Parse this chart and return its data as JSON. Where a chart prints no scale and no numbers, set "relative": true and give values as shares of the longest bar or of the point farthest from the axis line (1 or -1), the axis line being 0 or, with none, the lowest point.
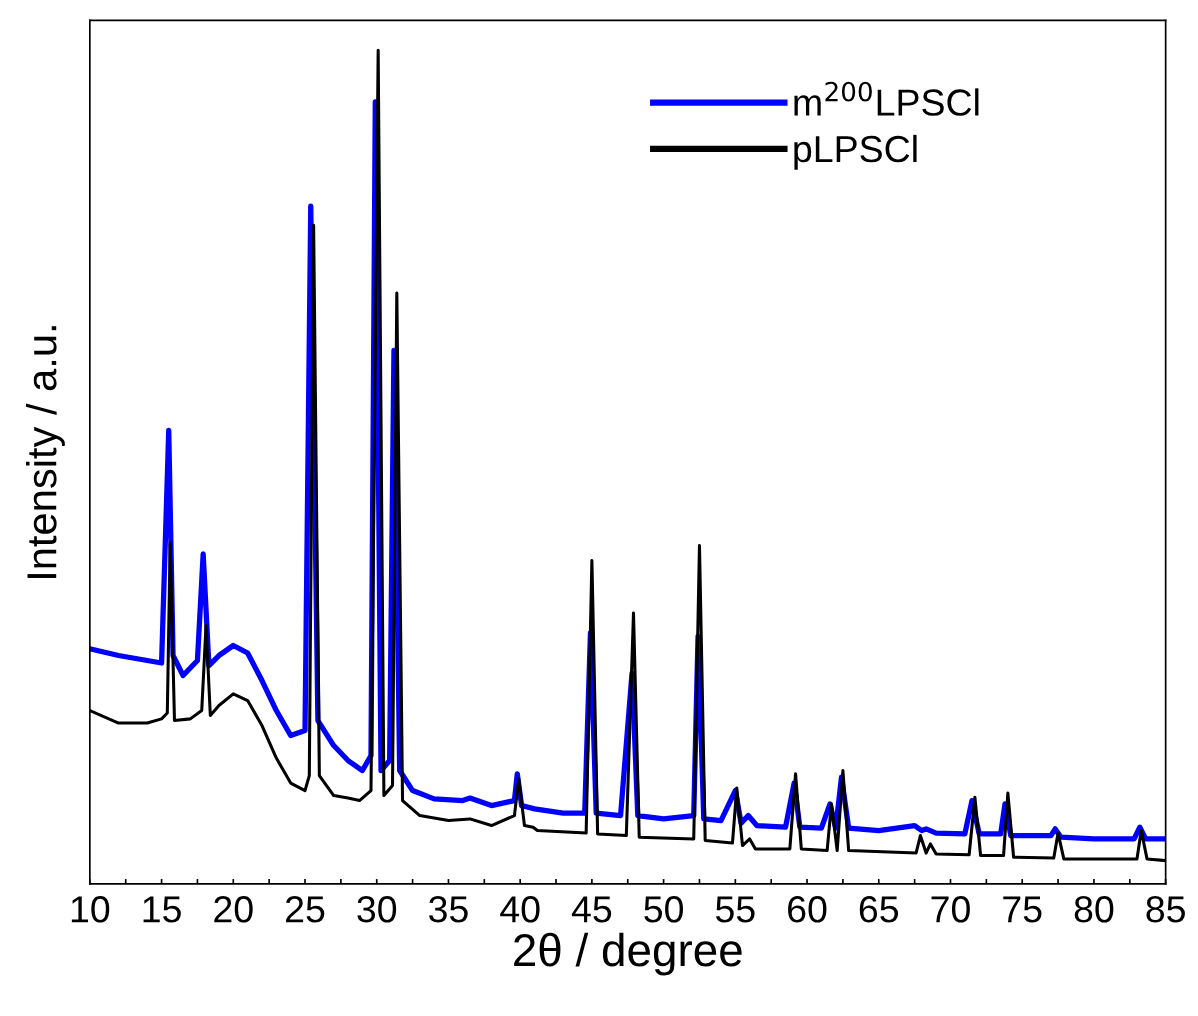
{
  "chart_data": {
    "type": "line",
    "xlabel": "2θ / degree",
    "ylabel": "Intensity / a.u.",
    "relative": true,
    "legend": "top right",
    "tick_labels": "x",
    "grid": false,
    "marker": "none",
    "line_style": "solid",
    "xlim": [
      10,
      85
    ],
    "xticks": [
      10,
      {
        "value": 12.5,
        "label": null
      },
      15,
      {
        "value": 17.5,
        "label": null
      },
      20,
      {
        "value": 22.5,
        "label": null
      },
      25,
      {
        "value": 27.5,
        "label": null
      },
      30,
      {
        "value": 32.5,
        "label": null
      },
      35,
      {
        "value": 37.5,
        "label": null
      },
      40,
      {
        "value": 42.5,
        "label": null
      },
      45,
      {
        "value": 47.5,
        "label": null
      },
      50,
      {
        "value": 52.5,
        "label": null
      },
      55,
      {
        "value": 57.5,
        "label": null
      },
      60,
      {
        "value": 62.5,
        "label": null
      },
      65,
      {
        "value": 67.5,
        "label": null
      },
      70,
      {
        "value": 72.5,
        "label": null
      },
      75,
      {
        "value": 77.5,
        "label": null
      },
      80,
      {
        "value": 82.5,
        "label": null
      },
      85
    ],
    "series": [
      {
        "name": "m$^{200}$LPSCl",
        "color": "#0000ff",
        "x": [
          10,
          12,
          14,
          15,
          15.5,
          15.8,
          16.5,
          17.5,
          17.9,
          18.3,
          19,
          20,
          21,
          22,
          23,
          24,
          25,
          25.4,
          25.9,
          27,
          28,
          29,
          29.6,
          29.9,
          30.3,
          30.9,
          31.2,
          31.6,
          32.5,
          34,
          36,
          36.5,
          38,
          39.6,
          39.8,
          40.1,
          41,
          43,
          44.5,
          44.9,
          45.3,
          47,
          47.8,
          48.2,
          50,
          52.1,
          52.4,
          52.8,
          54,
          55,
          55.4,
          55.9,
          56.5,
          58.5,
          59.1,
          59.5,
          61,
          61.6,
          62,
          62.4,
          62.9,
          65,
          67.5,
          68,
          68.3,
          69,
          71,
          71.5,
          72,
          73.5,
          73.8,
          74.2,
          77,
          77.3,
          77.7,
          80,
          82.8,
          83.2,
          83.6,
          85
        ],
        "values": [
          0.282,
          0.274,
          0.268,
          0.265,
          0.544,
          0.274,
          0.25,
          0.268,
          0.396,
          0.262,
          0.274,
          0.286,
          0.277,
          0.244,
          0.208,
          0.178,
          0.184,
          0.813,
          0.196,
          0.166,
          0.148,
          0.136,
          0.154,
          0.938,
          0.136,
          0.148,
          0.64,
          0.136,
          0.112,
          0.102,
          0.1,
          0.103,
          0.094,
          0.1,
          0.132,
          0.094,
          0.09,
          0.085,
          0.085,
          0.301,
          0.085,
          0.082,
          0.253,
          0.082,
          0.078,
          0.082,
          0.297,
          0.078,
          0.076,
          0.112,
          0.073,
          0.082,
          0.07,
          0.068,
          0.121,
          0.068,
          0.067,
          0.096,
          0.067,
          0.128,
          0.067,
          0.064,
          0.07,
          0.064,
          0.066,
          0.061,
          0.06,
          0.1,
          0.06,
          0.06,
          0.096,
          0.058,
          0.058,
          0.066,
          0.056,
          0.054,
          0.054,
          0.068,
          0.054,
          0.054
        ]
      },
      {
        "name": "pLPSCl",
        "color": "#000000",
        "x": [
          10,
          12,
          14,
          15,
          15.4,
          15.6,
          15.9,
          17,
          17.8,
          18.1,
          18.4,
          19,
          20,
          21,
          22,
          23,
          24,
          25,
          25.3,
          25.6,
          26,
          27,
          28,
          28.8,
          29.6,
          30.1,
          30.5,
          31.1,
          31.4,
          31.8,
          33,
          35,
          36.5,
          38,
          39.6,
          39.9,
          40.3,
          40.9,
          41.2,
          44.6,
          45.0,
          45.4,
          47.4,
          47.9,
          48.3,
          52.1,
          52.5,
          52.9,
          54.8,
          55.1,
          55.5,
          56,
          56.4,
          58.8,
          59.2,
          59.6,
          61.4,
          61.7,
          62.1,
          62.5,
          62.9,
          67.6,
          67.9,
          68.3,
          68.6,
          69,
          71.3,
          71.7,
          72.1,
          73.7,
          74.0,
          74.4,
          77.2,
          77.5,
          77.9,
          83,
          83.3,
          83.7,
          85
        ],
        "values": [
          0.208,
          0.193,
          0.193,
          0.198,
          0.205,
          0.409,
          0.196,
          0.198,
          0.208,
          0.31,
          0.202,
          0.214,
          0.228,
          0.22,
          0.19,
          0.151,
          0.121,
          0.112,
          0.13,
          0.79,
          0.13,
          0.106,
          0.103,
          0.1,
          0.112,
          1.0,
          0.106,
          0.118,
          0.709,
          0.1,
          0.082,
          0.076,
          0.078,
          0.07,
          0.082,
          0.126,
          0.07,
          0.068,
          0.064,
          0.061,
          0.388,
          0.06,
          0.058,
          0.325,
          0.056,
          0.054,
          0.406,
          0.052,
          0.049,
          0.115,
          0.046,
          0.054,
          0.042,
          0.042,
          0.132,
          0.042,
          0.04,
          0.096,
          0.04,
          0.136,
          0.04,
          0.037,
          0.058,
          0.037,
          0.048,
          0.036,
          0.035,
          0.104,
          0.034,
          0.034,
          0.109,
          0.032,
          0.031,
          0.061,
          0.03,
          0.03,
          0.064,
          0.03,
          0.028
        ]
      }
    ]
  }
}
